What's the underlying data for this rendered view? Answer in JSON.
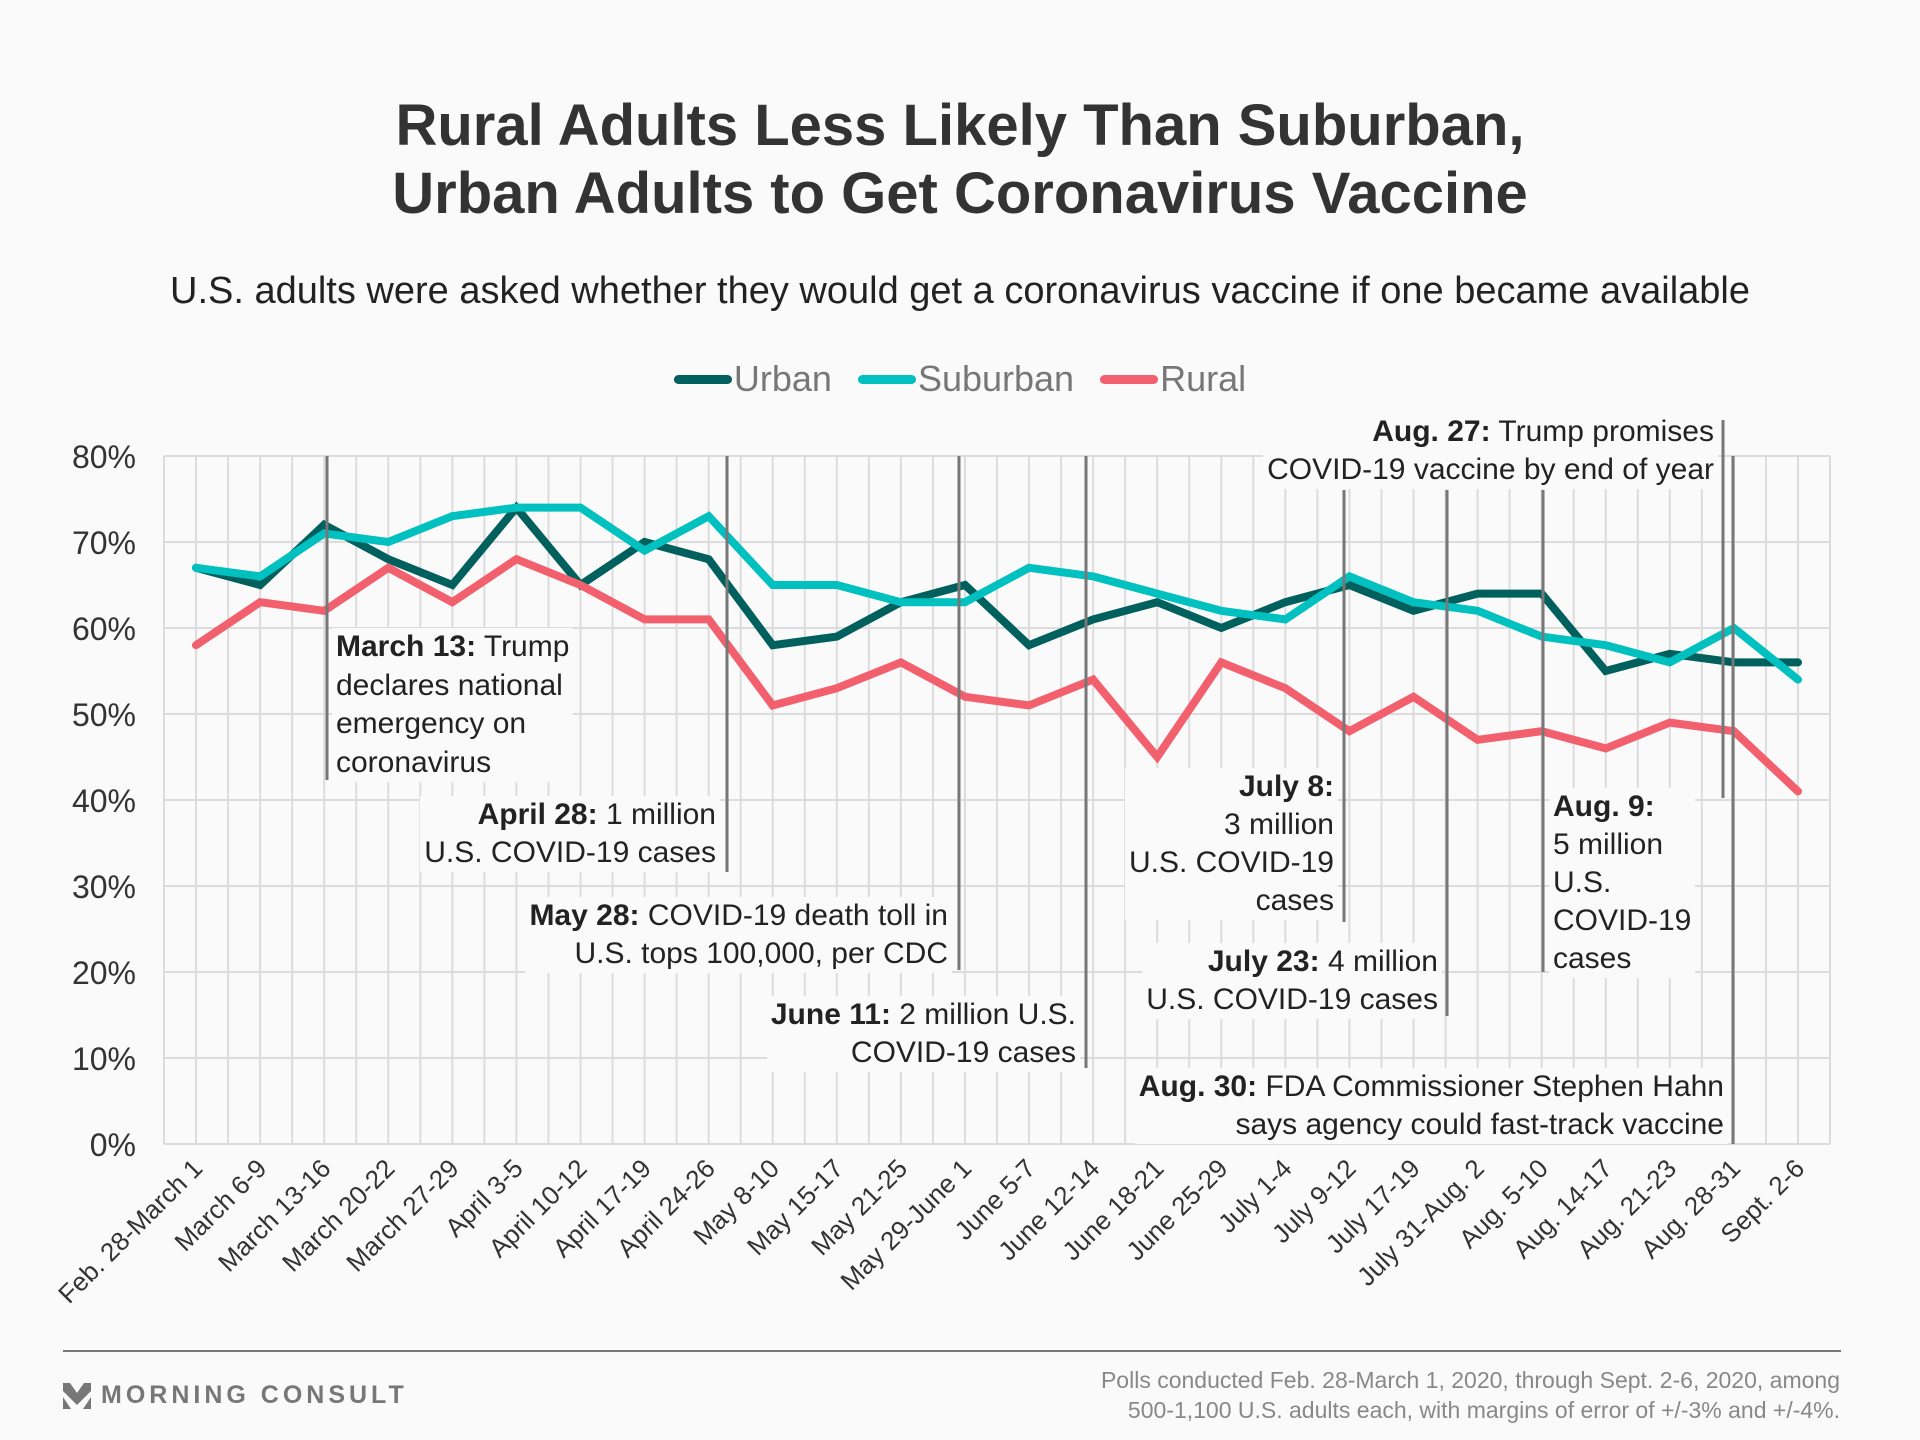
{
  "title_lines": [
    "Rural Adults Less Likely Than Suburban,",
    "Urban Adults to Get Coronavirus Vaccine"
  ],
  "subtitle": "U.S. adults were asked whether they would get a coronavirus vaccine if one became available",
  "legend": [
    {
      "name": "Urban",
      "color": "#00605e"
    },
    {
      "name": "Suburban",
      "color": "#00c0c0"
    },
    {
      "name": "Rural",
      "color": "#f2606e"
    }
  ],
  "chart_data": {
    "type": "line",
    "title": "Rural Adults Less Likely Than Suburban, Urban Adults to Get Coronavirus Vaccine",
    "subtitle": "U.S. adults were asked whether they would get a coronavirus vaccine if one became available",
    "xlabel": "",
    "ylabel": "",
    "ylim": [
      0,
      80
    ],
    "yticks": [
      0,
      10,
      20,
      30,
      40,
      50,
      60,
      70,
      80
    ],
    "ytick_labels": [
      "0%",
      "10%",
      "20%",
      "30%",
      "40%",
      "50%",
      "60%",
      "70%",
      "80%"
    ],
    "grid": true,
    "legend_position": "top-center",
    "categories": [
      "Feb. 28-March 1",
      "March 6-9",
      "March 13-16",
      "March 20-22",
      "March 27-29",
      "April 3-5",
      "April 10-12",
      "April 17-19",
      "April 24-26",
      "May 8-10",
      "May 15-17",
      "May 21-25",
      "May 29-June 1",
      "June 5-7",
      "June 12-14",
      "June 18-21",
      "June 25-29",
      "July 1-4",
      "July 9-12",
      "July 17-19",
      "July 31-Aug. 2",
      "Aug. 5-10",
      "Aug. 14-17",
      "Aug. 21-23",
      "Aug. 28-31",
      "Sept. 2-6"
    ],
    "series": [
      {
        "name": "Urban",
        "color": "#00605e",
        "values": [
          67,
          65,
          72,
          68,
          65,
          74,
          65,
          70,
          68,
          58,
          59,
          63,
          65,
          58,
          61,
          63,
          60,
          63,
          65,
          62,
          64,
          64,
          55,
          57,
          56,
          56
        ]
      },
      {
        "name": "Suburban",
        "color": "#00c0c0",
        "values": [
          67,
          66,
          71,
          70,
          73,
          74,
          74,
          69,
          73,
          65,
          65,
          63,
          63,
          67,
          66,
          64,
          62,
          61,
          66,
          63,
          62,
          59,
          58,
          56,
          60,
          54
        ]
      },
      {
        "name": "Rural",
        "color": "#f2606e",
        "values": [
          58,
          63,
          62,
          67,
          63,
          68,
          65,
          61,
          61,
          51,
          53,
          56,
          52,
          51,
          54,
          45,
          56,
          53,
          48,
          52,
          47,
          48,
          46,
          49,
          48,
          41
        ]
      }
    ],
    "annotations": [
      {
        "date": "March 13:",
        "text": [
          "Trump",
          "declares national",
          "emergency on",
          "coronavirus"
        ],
        "at_category": "March 13-16"
      },
      {
        "date": "April 28:",
        "text": [
          "1 million",
          "U.S. COVID-19 cases"
        ],
        "at_category": "between April 24-26 and May 8-10"
      },
      {
        "date": "May 28:",
        "text": [
          "COVID-19 death toll in",
          "U.S. tops 100,000, per CDC"
        ],
        "at_category": "May 29-June 1"
      },
      {
        "date": "June 11:",
        "text": [
          "2 million U.S.",
          "COVID-19 cases"
        ],
        "at_category": "June 12-14"
      },
      {
        "date": "July 8:",
        "text": [
          "3 million",
          "U.S. COVID-19",
          "cases"
        ],
        "at_category": "July 9-12"
      },
      {
        "date": "July 23:",
        "text": [
          "4 million",
          "U.S. COVID-19 cases"
        ],
        "at_category": "between July 17-19 and July 31-Aug. 2"
      },
      {
        "date": "Aug. 9:",
        "text": [
          "5 million",
          "U.S.",
          "COVID-19",
          "cases"
        ],
        "at_category": "Aug. 5-10"
      },
      {
        "date": "Aug. 27:",
        "text": [
          "Trump promises",
          "COVID-19 vaccine by end of year"
        ],
        "at_category": "Aug. 28-31"
      },
      {
        "date": "Aug. 30:",
        "text": [
          "FDA Commissioner Stephen Hahn",
          "says agency could fast-track vaccine"
        ],
        "at_category": "Aug. 28-31"
      }
    ]
  },
  "annotations_display": {
    "a0": {
      "date": "March 13:",
      "l1": "Trump",
      "l2": "declares national",
      "l3": "emergency on",
      "l4": "coronavirus"
    },
    "a1": {
      "date": "April 28:",
      "l1": "1 million",
      "l2": "U.S. COVID-19 cases"
    },
    "a2": {
      "date": "May 28:",
      "l1": "COVID-19 death toll in",
      "l2": "U.S. tops 100,000, per CDC"
    },
    "a3": {
      "date": "June 11:",
      "l1": "2 million U.S.",
      "l2": "COVID-19 cases"
    },
    "a4": {
      "date": "July 8:",
      "l1": "3 million",
      "l2": "U.S. COVID-19",
      "l3": "cases"
    },
    "a5": {
      "date": "July 23:",
      "l1": "4 million",
      "l2": "U.S. COVID-19 cases"
    },
    "a6": {
      "date": "Aug. 9:",
      "l1": "5 million",
      "l2": "U.S.",
      "l3": "COVID-19",
      "l4": "cases"
    },
    "a7": {
      "date": "Aug. 27:",
      "l1": "Trump promises",
      "l2": "COVID-19 vaccine by end of year"
    },
    "a8": {
      "date": "Aug. 30:",
      "l1": "FDA Commissioner Stephen Hahn",
      "l2": "says agency could fast-track vaccine"
    }
  },
  "footer": {
    "logo_text": "MORNING CONSULT",
    "note_lines": [
      "Polls conducted Feb. 28-March 1, 2020, through Sept. 2-6, 2020, among",
      "500-1,100 U.S. adults each, with margins of error of +/-3% and +/-4%."
    ]
  }
}
